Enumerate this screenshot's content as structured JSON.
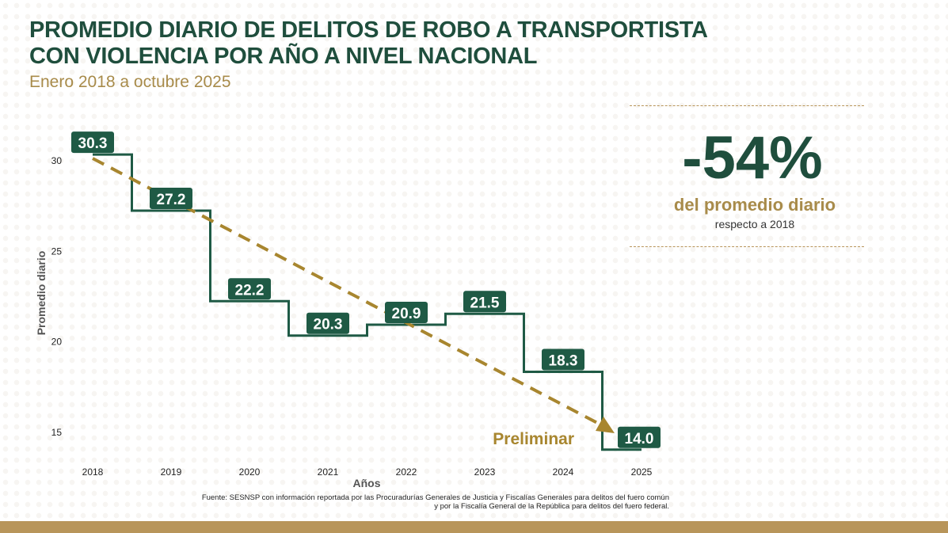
{
  "header": {
    "title_line1": "PROMEDIO DIARIO DE DELITOS DE ROBO A TRANSPORTISTA",
    "title_line2": "CON VIOLENCIA POR AÑO A NIVEL NACIONAL",
    "subtitle": "Enero 2018 a octubre 2025"
  },
  "kpi": {
    "value": "-54%",
    "label": "del promedio diario",
    "sublabel": "respecto a 2018"
  },
  "source": {
    "line1": "Fuente: SESNSP con información reportada por las Procuradurías Generales de Justicia y Fiscalías Generales para delitos del fuero común",
    "line2": "y por la Fiscalía General de la República para delitos del fuero federal."
  },
  "colors": {
    "line": "#1f5a45",
    "trend": "#a8862f",
    "accent": "#b8955a"
  },
  "chart_data": {
    "type": "line",
    "step": true,
    "categories": [
      "2018",
      "2019",
      "2020",
      "2021",
      "2022",
      "2023",
      "2024",
      "2025"
    ],
    "values": [
      30.3,
      27.2,
      22.2,
      20.3,
      20.9,
      21.5,
      18.3,
      14.0
    ],
    "data_labels": [
      "30.3",
      "27.2",
      "22.2",
      "20.3",
      "20.9",
      "21.5",
      "18.3",
      "14.0"
    ],
    "xlabel": "Años",
    "ylabel": "Promedio diario",
    "yticks": [
      15,
      20,
      25,
      30
    ],
    "trend_annotation": "Preliminar",
    "grid": false
  }
}
